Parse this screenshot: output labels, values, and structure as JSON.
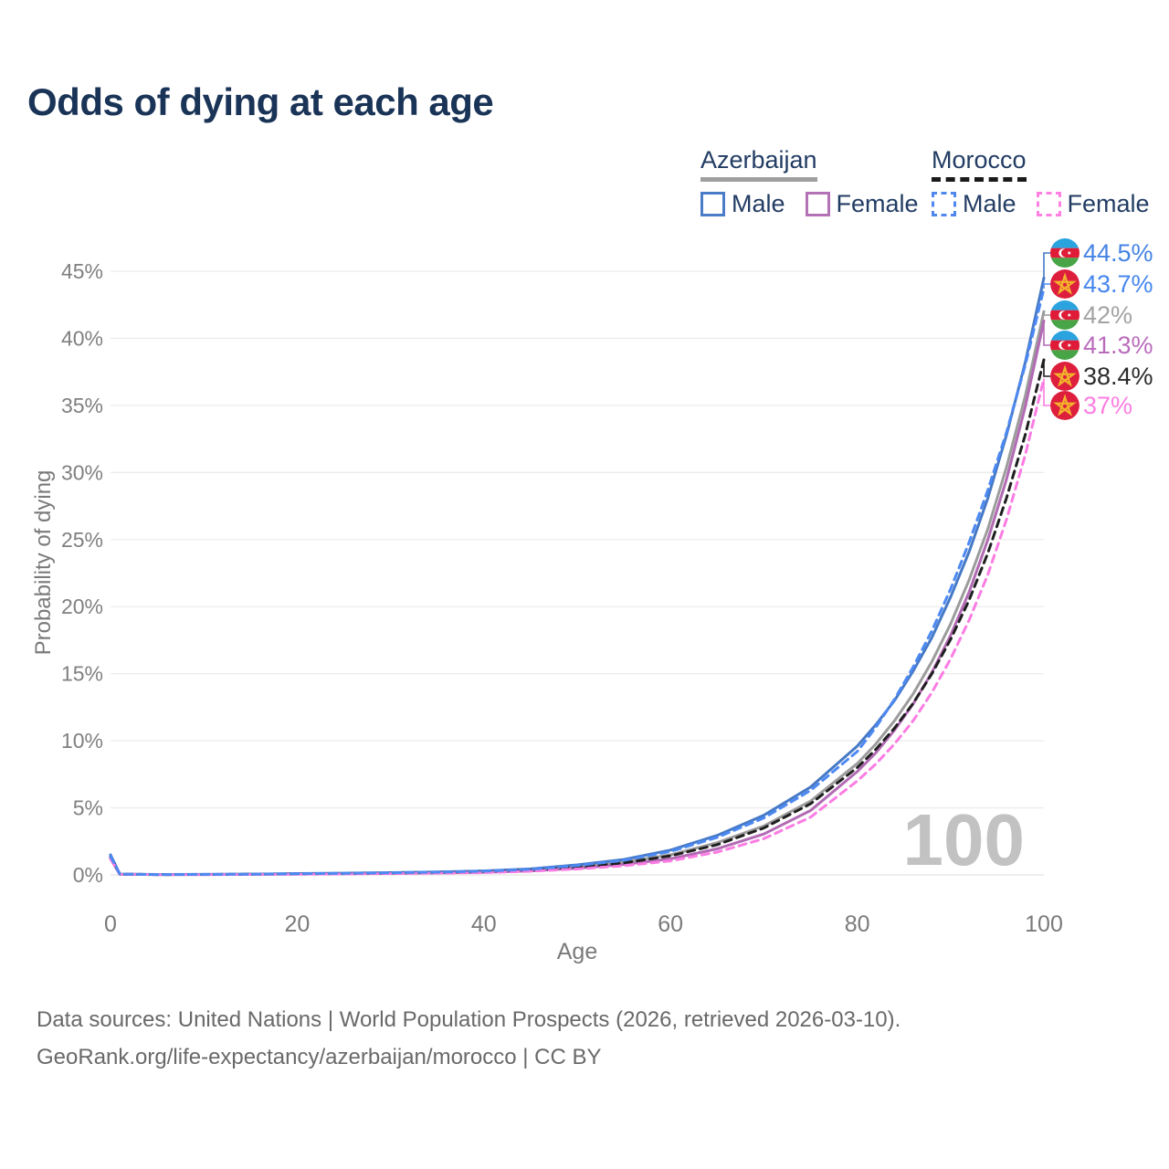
{
  "title": "Odds of dying at each age",
  "legend": {
    "groups": [
      {
        "label": "Azerbaijan",
        "line_style": "solid",
        "line_color": "#9e9e9e",
        "items": [
          {
            "label": "Male",
            "color": "#4a7cc7",
            "dash": false
          },
          {
            "label": "Female",
            "color": "#b472b6",
            "dash": false
          }
        ]
      },
      {
        "label": "Morocco",
        "line_style": "dashed",
        "line_color": "#1a1a1a",
        "items": [
          {
            "label": "Male",
            "color": "#4f87ee",
            "dash": true
          },
          {
            "label": "Female",
            "color": "#ff80e1",
            "dash": true
          }
        ]
      }
    ]
  },
  "y_axis": {
    "title": "Probability of dying",
    "ticks": [
      "0%",
      "5%",
      "10%",
      "15%",
      "20%",
      "25%",
      "30%",
      "35%",
      "40%",
      "45%"
    ],
    "tick_values": [
      0,
      5,
      10,
      15,
      20,
      25,
      30,
      35,
      40,
      45
    ]
  },
  "x_axis": {
    "title": "Age",
    "ticks": [
      "0",
      "20",
      "40",
      "60",
      "80",
      "100"
    ],
    "tick_values": [
      0,
      20,
      40,
      60,
      80,
      100
    ]
  },
  "watermark": "100",
  "chart_data": {
    "type": "line",
    "title": "Odds of dying at each age",
    "xlabel": "Age",
    "ylabel": "Probability of dying",
    "xlim": [
      0,
      100
    ],
    "ylim_pct": [
      0,
      47
    ],
    "grid": "horizontal",
    "legend_position": "top-right",
    "x": [
      0,
      1,
      5,
      10,
      15,
      20,
      25,
      30,
      35,
      40,
      45,
      50,
      55,
      60,
      65,
      70,
      75,
      80,
      82,
      84,
      86,
      88,
      90,
      92,
      94,
      96,
      98,
      100
    ],
    "series": [
      {
        "name": "Azerbaijan Male",
        "country": "Azerbaijan",
        "sex": "male",
        "color": "#4679c6",
        "dash": false,
        "end_label": "44.5%",
        "end_label_color": "#4583e3",
        "flag": "azerbaijan-flag-icon",
        "values": [
          1.5,
          0.06,
          0.035,
          0.04,
          0.06,
          0.1,
          0.13,
          0.17,
          0.22,
          0.3,
          0.45,
          0.75,
          1.15,
          1.85,
          2.95,
          4.45,
          6.55,
          9.6,
          11.2,
          13.0,
          15.2,
          17.7,
          20.7,
          24.1,
          28.1,
          32.8,
          38.2,
          44.5
        ]
      },
      {
        "name": "Morocco Male",
        "country": "Morocco",
        "sex": "male",
        "color": "#4d89f2",
        "dash": true,
        "end_label": "43.7%",
        "end_label_color": "#4787ef",
        "flag": "morocco-flag-icon",
        "values": [
          1.4,
          0.06,
          0.03,
          0.04,
          0.055,
          0.09,
          0.12,
          0.16,
          0.21,
          0.28,
          0.42,
          0.7,
          1.08,
          1.75,
          2.8,
          4.25,
          6.3,
          9.2,
          11.0,
          13.1,
          15.5,
          18.2,
          21.3,
          24.8,
          28.7,
          33.0,
          38.0,
          43.7
        ]
      },
      {
        "name": "Azerbaijan (both sexes)",
        "country": "Azerbaijan",
        "sex": "both",
        "color": "#9c9c9c",
        "dash": false,
        "end_label": "42%",
        "end_label_color": "#a3a3a3",
        "flag": "azerbaijan-flag-icon",
        "values": [
          1.35,
          0.055,
          0.03,
          0.035,
          0.05,
          0.08,
          0.11,
          0.14,
          0.18,
          0.25,
          0.38,
          0.62,
          0.95,
          1.5,
          2.4,
          3.65,
          5.5,
          8.3,
          9.76,
          11.5,
          13.5,
          15.9,
          18.7,
          22.0,
          25.8,
          30.4,
          35.7,
          42.0
        ]
      },
      {
        "name": "Azerbaijan Female",
        "country": "Azerbaijan",
        "sex": "female",
        "color": "#b26ab4",
        "dash": false,
        "end_label": "41.3%",
        "end_label_color": "#ba6cbc",
        "flag": "azerbaijan-flag-icon",
        "values": [
          1.2,
          0.05,
          0.025,
          0.03,
          0.04,
          0.06,
          0.08,
          0.11,
          0.14,
          0.2,
          0.3,
          0.5,
          0.78,
          1.2,
          1.95,
          3.05,
          4.8,
          7.7,
          9.1,
          10.8,
          12.75,
          15.1,
          17.85,
          21.1,
          25.0,
          29.5,
          34.9,
          41.3
        ]
      },
      {
        "name": "Morocco (both sexes)",
        "country": "Morocco",
        "sex": "both",
        "color": "#1f1f1f",
        "dash": true,
        "end_label": "38.4%",
        "end_label_color": "#2b2b2b",
        "flag": "morocco-flag-icon",
        "values": [
          1.3,
          0.055,
          0.03,
          0.035,
          0.05,
          0.075,
          0.1,
          0.135,
          0.18,
          0.24,
          0.36,
          0.58,
          0.9,
          1.42,
          2.25,
          3.5,
          5.3,
          8.0,
          9.36,
          10.95,
          12.8,
          15.0,
          17.55,
          20.5,
          24.0,
          28.1,
          32.8,
          38.4
        ]
      },
      {
        "name": "Morocco Female",
        "country": "Morocco",
        "sex": "female",
        "color": "#fb7ce3",
        "dash": true,
        "end_label": "37%",
        "end_label_color": "#fc7ee2",
        "flag": "morocco-flag-icon",
        "values": [
          1.2,
          0.05,
          0.025,
          0.03,
          0.035,
          0.055,
          0.075,
          0.1,
          0.13,
          0.18,
          0.27,
          0.44,
          0.68,
          1.05,
          1.7,
          2.7,
          4.3,
          7.0,
          8.27,
          9.77,
          11.5,
          13.6,
          16.1,
          19.0,
          22.4,
          26.5,
          31.3,
          37.0
        ]
      }
    ]
  },
  "footer": {
    "line1": "Data sources: United Nations | World Population Prospects (2026, retrieved 2026-03-10).",
    "line2": "GeoRank.org/life-expectancy/azerbaijan/morocco | CC BY"
  }
}
